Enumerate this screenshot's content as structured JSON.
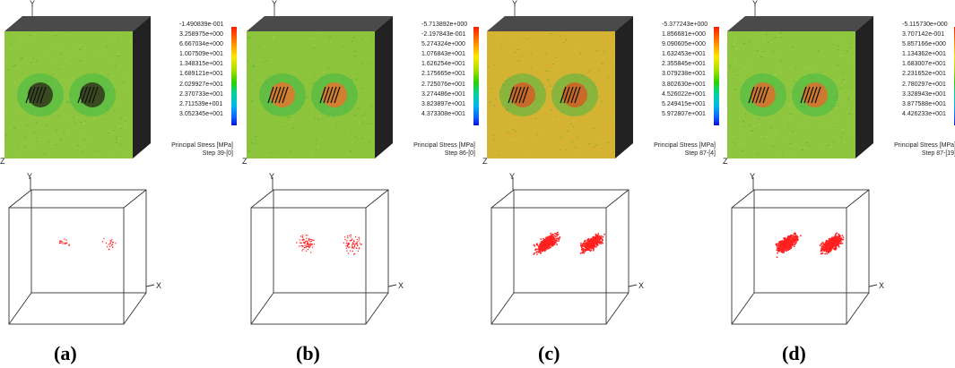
{
  "panels": [
    {
      "caption": "(a)",
      "legend": [
        "-1.490839e-001",
        "3.258975e+000",
        "6.667034e+000",
        "1.007509e+001",
        "1.348315e+001",
        "1.689121e+001",
        "2.029927e+001",
        "2.370733e+001",
        "2.711539e+001",
        "3.052345e+001"
      ],
      "legend_title": "Principal Stress [MPa]",
      "step": "Step 39-[0]",
      "face_color": "#8ec63f",
      "hole_color": "#3a4a20",
      "points": 40
    },
    {
      "caption": "(b)",
      "legend": [
        "-5.713892e+000",
        "-2.197843e-001",
        "5.274324e+000",
        "1.076843e+001",
        "1.626254e+001",
        "2.175665e+001",
        "2.725076e+001",
        "3.274486e+001",
        "3.823897e+001",
        "4.373308e+001"
      ],
      "legend_title": "Principal Stress [MPa]",
      "step": "Step 86-[0]",
      "face_color": "#8cc43c",
      "hole_color": "#d08030",
      "points": 140
    },
    {
      "caption": "(c)",
      "legend": [
        "-5.377243e+000",
        "1.856681e+000",
        "9.090605e+000",
        "1.632453e+001",
        "2.355845e+001",
        "3.079238e+001",
        "3.802630e+001",
        "4.526022e+001",
        "5.249415e+001",
        "5.972807e+001"
      ],
      "legend_title": "Principal Stress [MPa]",
      "step": "Step 87-[4]",
      "face_color": "#d4b232",
      "hole_color": "#c86a28",
      "points": 900
    },
    {
      "caption": "(d)",
      "legend": [
        "-5.115730e+000",
        "3.707142e-001",
        "5.857166e+000",
        "1.134362e+001",
        "1.683007e+001",
        "2.231652e+001",
        "2.780297e+001",
        "3.328943e+001",
        "3.877588e+001",
        "4.426233e+001"
      ],
      "legend_title": "Principal Stress [MPa]",
      "step": "Step 87-[19]",
      "face_color": "#8ec63f",
      "hole_color": "#cc7a30",
      "points": 1100
    }
  ],
  "axes": {
    "x": "X",
    "y": "Y",
    "z": "Z"
  }
}
